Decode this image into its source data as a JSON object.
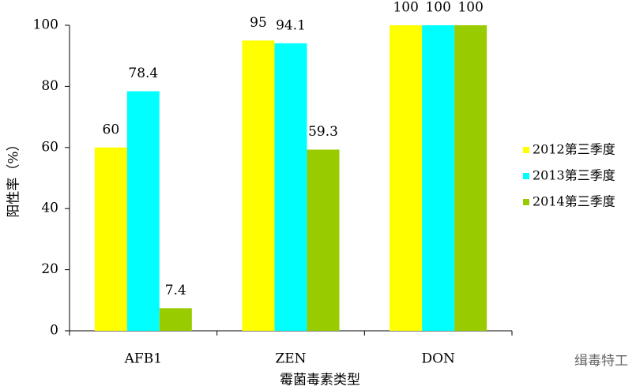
{
  "chart_data": {
    "type": "bar",
    "categories": [
      "AFB1",
      "ZEN",
      "DON"
    ],
    "series": [
      {
        "name": "2012第三季度",
        "color": "#ffff00",
        "values": [
          60,
          95,
          100
        ]
      },
      {
        "name": "2013第三季度",
        "color": "#00ffff",
        "values": [
          78.4,
          94.1,
          100
        ]
      },
      {
        "name": "2014第三季度",
        "color": "#99cc00",
        "values": [
          7.4,
          59.3,
          100
        ]
      }
    ],
    "y_label": "阳性率（%）",
    "x_label": "霉菌毒素类型",
    "ylim": [
      0,
      100
    ],
    "yticks": [
      0,
      20,
      40,
      60,
      80,
      100
    ],
    "legend": "right",
    "watermark": "缉毒特工"
  }
}
